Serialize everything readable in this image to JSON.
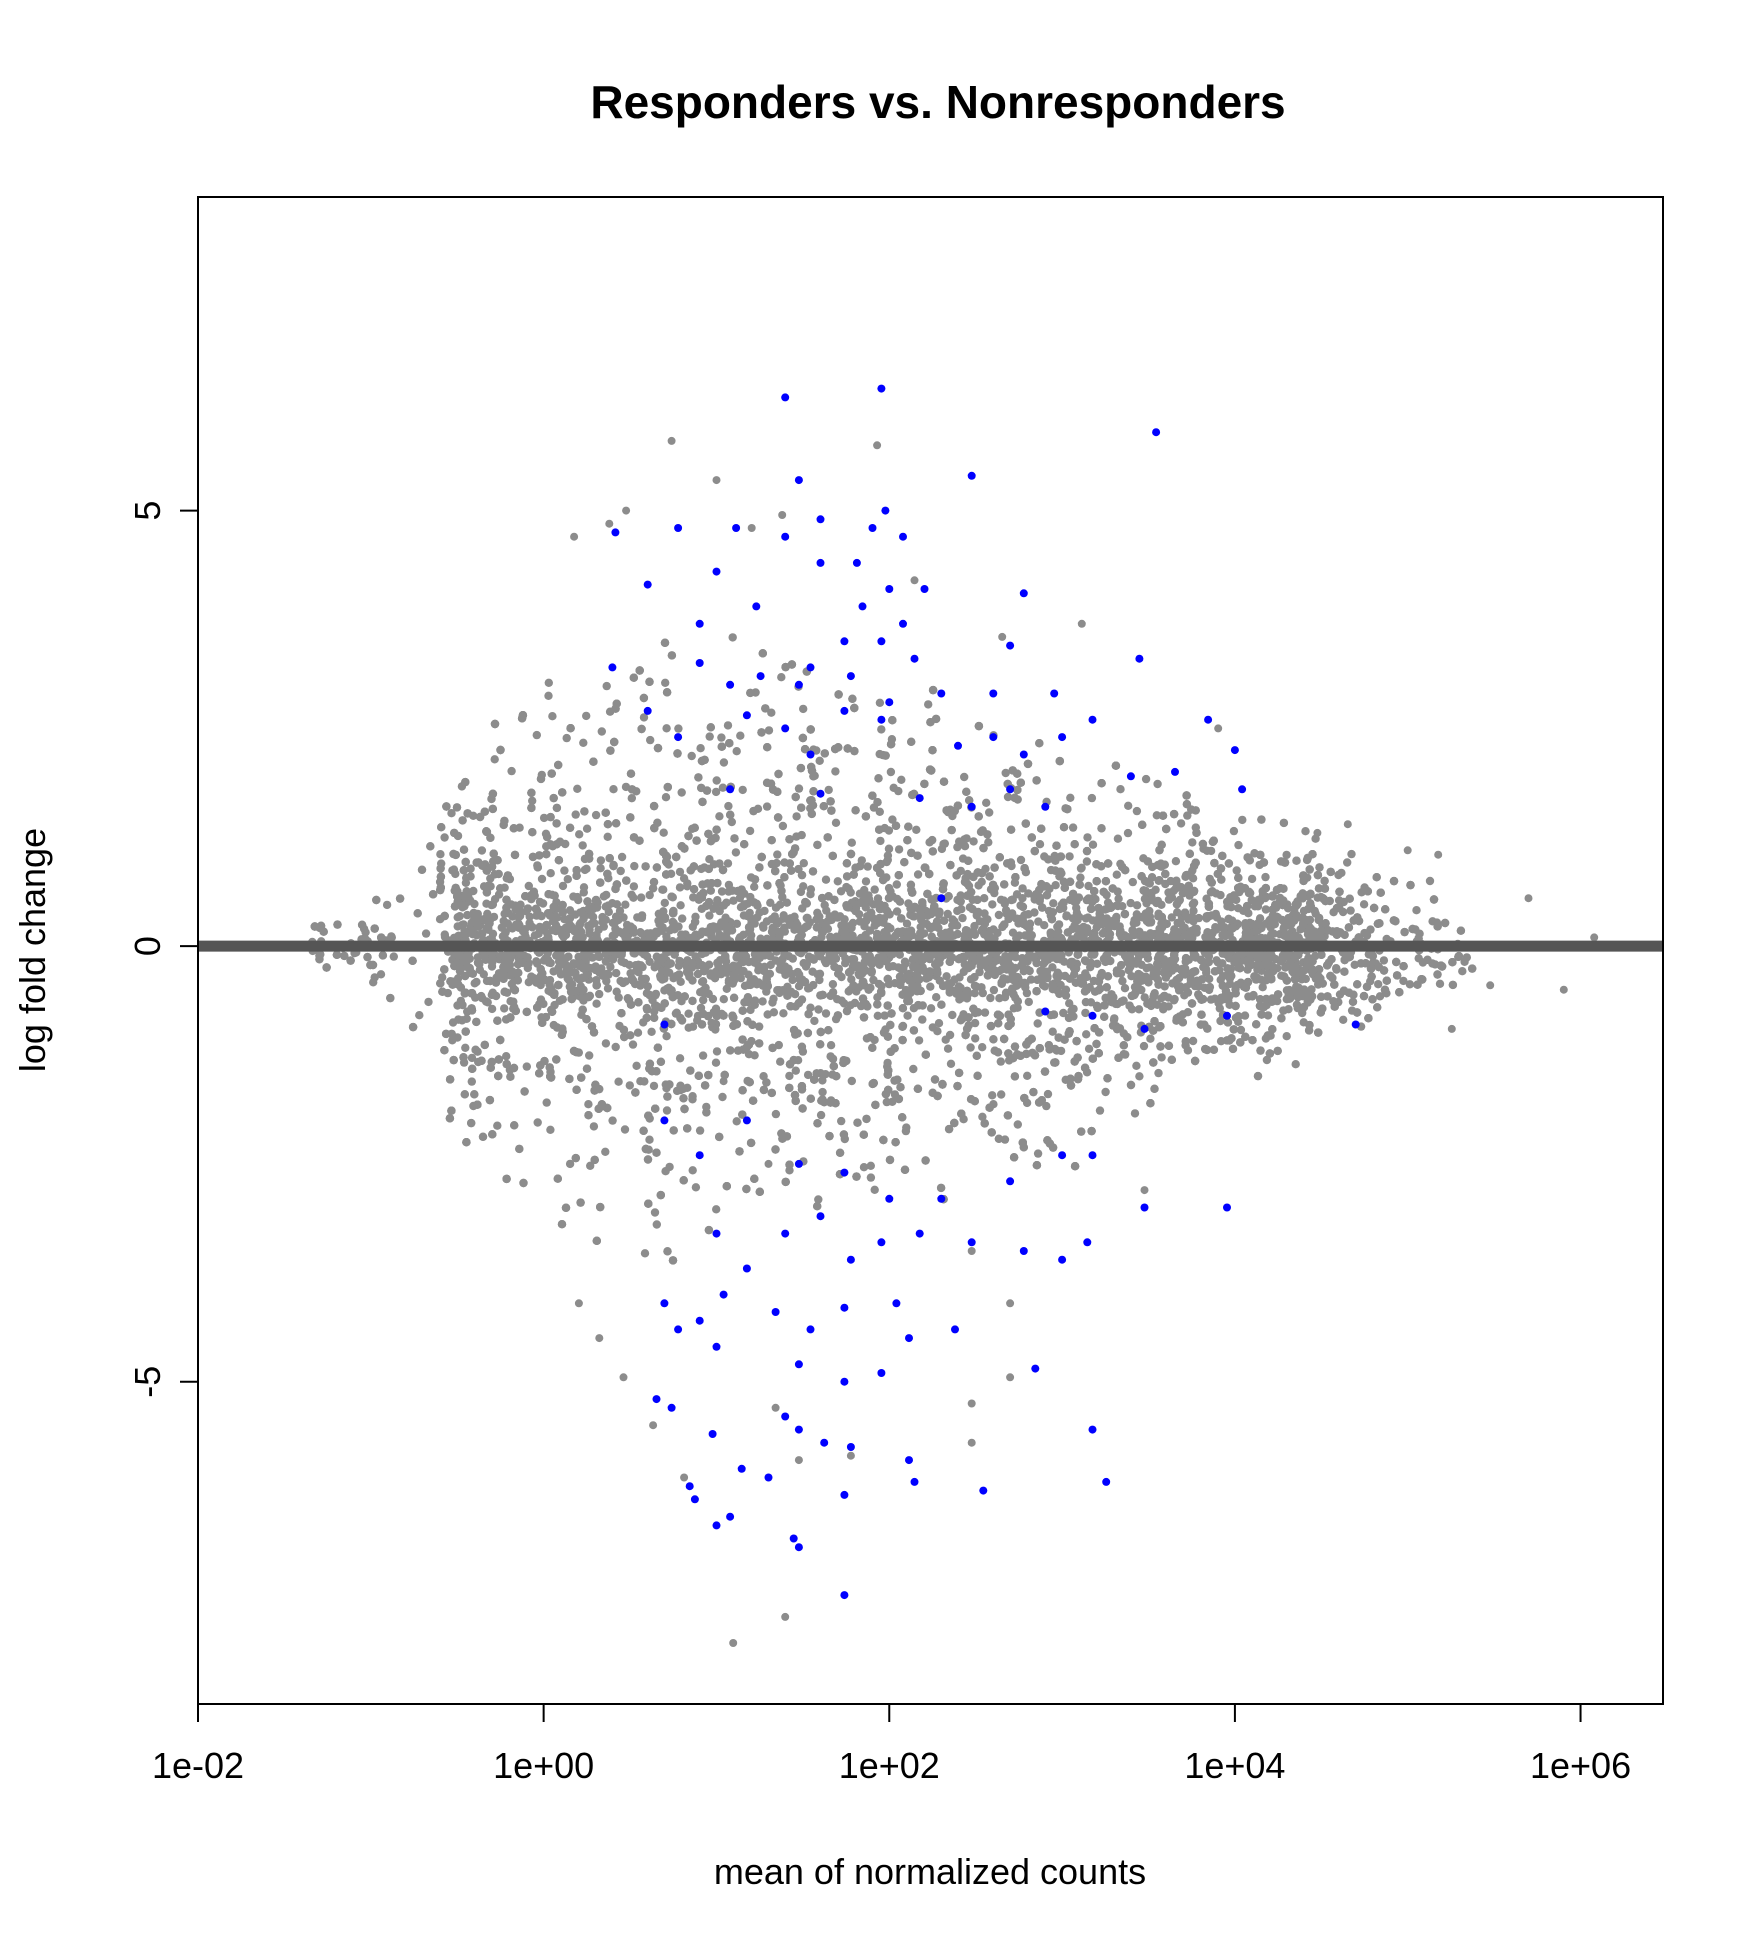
{
  "chart_data": {
    "type": "scatter",
    "title": "Responders vs. Nonresponders",
    "xlabel": "mean of normalized counts",
    "ylabel": "log fold change",
    "x_scale": "log10",
    "xlim": [
      0.01,
      3000000
    ],
    "ylim": [
      -8.7,
      8.6
    ],
    "x_ticks": [
      {
        "value": 0.01,
        "label": "1e-02"
      },
      {
        "value": 1,
        "label": "1e+00"
      },
      {
        "value": 100,
        "label": "1e+02"
      },
      {
        "value": 10000,
        "label": "1e+04"
      },
      {
        "value": 1000000,
        "label": "1e+06"
      }
    ],
    "y_ticks": [
      {
        "value": -5,
        "label": "-5"
      },
      {
        "value": 0,
        "label": "0"
      },
      {
        "value": 5,
        "label": "5"
      }
    ],
    "reference_line": {
      "y": 0,
      "color": "#555555"
    },
    "colors": {
      "not_significant": "#8c8c8c",
      "significant": "#0000ff"
    },
    "grid": false,
    "legend": "none",
    "series": [
      {
        "values": [
          [
            1.5,
            4.7
          ],
          [
            2.4,
            4.85
          ],
          [
            3.0,
            5.0
          ],
          [
            5.5,
            5.8
          ],
          [
            10,
            5.35
          ],
          [
            16,
            4.8
          ],
          [
            24,
            4.95
          ],
          [
            85,
            5.75
          ],
          [
            140,
            4.2
          ],
          [
            450,
            3.55
          ],
          [
            1300,
            3.7
          ],
          [
            8000,
            2.5
          ],
          [
            30000,
            1.3
          ],
          [
            45000,
            1.4
          ],
          [
            100000,
            1.1
          ],
          [
            150000,
            1.05
          ],
          [
            500000,
            0.55
          ],
          [
            1200000,
            0.1
          ],
          [
            180000,
            -0.95
          ],
          [
            800000,
            -0.5
          ],
          [
            300000,
            -0.45
          ],
          [
            11,
            -1.55
          ],
          [
            20,
            -2.5
          ],
          [
            1.6,
            -4.1
          ],
          [
            2.1,
            -4.5
          ],
          [
            2.9,
            -4.95
          ],
          [
            4.3,
            -5.5
          ],
          [
            6.5,
            -6.1
          ],
          [
            12.5,
            -8.0
          ],
          [
            25,
            -7.7
          ],
          [
            22,
            -5.3
          ],
          [
            60,
            -5.85
          ],
          [
            300,
            -5.25
          ],
          [
            300,
            -5.7
          ],
          [
            500,
            -4.1
          ],
          [
            500,
            -4.95
          ],
          [
            3000,
            -2.8
          ],
          [
            300,
            -3.5
          ],
          [
            30,
            -5.9
          ]
        ]
      },
      {
        "values": [
          [
            25,
            6.3
          ],
          [
            90,
            6.4
          ],
          [
            3500,
            5.9
          ],
          [
            30,
            5.35
          ],
          [
            300,
            5.4
          ],
          [
            6,
            4.8
          ],
          [
            13,
            4.8
          ],
          [
            25,
            4.7
          ],
          [
            40,
            4.9
          ],
          [
            80,
            4.8
          ],
          [
            95,
            5.0
          ],
          [
            120,
            4.7
          ],
          [
            2.6,
            4.75
          ],
          [
            4,
            4.15
          ],
          [
            8,
            3.7
          ],
          [
            17,
            3.9
          ],
          [
            10,
            4.3
          ],
          [
            40,
            4.4
          ],
          [
            65,
            4.4
          ],
          [
            100,
            4.1
          ],
          [
            160,
            4.1
          ],
          [
            70,
            3.9
          ],
          [
            120,
            3.7
          ],
          [
            90,
            3.5
          ],
          [
            35,
            3.2
          ],
          [
            55,
            3.5
          ],
          [
            140,
            3.3
          ],
          [
            500,
            3.45
          ],
          [
            600,
            4.05
          ],
          [
            2800,
            3.3
          ],
          [
            2.5,
            3.2
          ],
          [
            8,
            3.25
          ],
          [
            12,
            3.0
          ],
          [
            18,
            3.1
          ],
          [
            30,
            3.0
          ],
          [
            60,
            3.1
          ],
          [
            100,
            2.8
          ],
          [
            200,
            2.9
          ],
          [
            400,
            2.9
          ],
          [
            900,
            2.9
          ],
          [
            4,
            2.7
          ],
          [
            6,
            2.4
          ],
          [
            15,
            2.65
          ],
          [
            25,
            2.5
          ],
          [
            35,
            2.2
          ],
          [
            55,
            2.7
          ],
          [
            90,
            2.6
          ],
          [
            250,
            2.3
          ],
          [
            400,
            2.4
          ],
          [
            600,
            2.2
          ],
          [
            1000,
            2.4
          ],
          [
            1500,
            2.6
          ],
          [
            2500,
            1.95
          ],
          [
            4500,
            2.0
          ],
          [
            7000,
            2.6
          ],
          [
            10000,
            2.25
          ],
          [
            11000,
            1.8
          ],
          [
            12,
            1.8
          ],
          [
            40,
            1.75
          ],
          [
            150,
            1.7
          ],
          [
            300,
            1.6
          ],
          [
            500,
            1.8
          ],
          [
            800,
            1.6
          ],
          [
            200,
            0.55
          ],
          [
            5,
            -0.9
          ],
          [
            800,
            -0.75
          ],
          [
            1500,
            -0.8
          ],
          [
            3000,
            -0.95
          ],
          [
            9000,
            -0.8
          ],
          [
            50000,
            -0.9
          ],
          [
            5,
            -2.0
          ],
          [
            8,
            -2.4
          ],
          [
            15,
            -2.0
          ],
          [
            30,
            -2.5
          ],
          [
            55,
            -2.6
          ],
          [
            100,
            -2.9
          ],
          [
            200,
            -2.9
          ],
          [
            500,
            -2.7
          ],
          [
            1000,
            -2.4
          ],
          [
            1500,
            -2.4
          ],
          [
            3000,
            -3.0
          ],
          [
            9000,
            -3.0
          ],
          [
            10,
            -3.3
          ],
          [
            15,
            -3.7
          ],
          [
            25,
            -3.3
          ],
          [
            40,
            -3.1
          ],
          [
            60,
            -3.6
          ],
          [
            90,
            -3.4
          ],
          [
            150,
            -3.3
          ],
          [
            300,
            -3.4
          ],
          [
            600,
            -3.5
          ],
          [
            1000,
            -3.6
          ],
          [
            1400,
            -3.4
          ],
          [
            5,
            -4.1
          ],
          [
            8,
            -4.3
          ],
          [
            11,
            -4.0
          ],
          [
            22,
            -4.2
          ],
          [
            35,
            -4.4
          ],
          [
            55,
            -4.15
          ],
          [
            110,
            -4.1
          ],
          [
            240,
            -4.4
          ],
          [
            6,
            -4.4
          ],
          [
            10,
            -4.6
          ],
          [
            30,
            -4.8
          ],
          [
            55,
            -5.0
          ],
          [
            90,
            -4.9
          ],
          [
            130,
            -4.5
          ],
          [
            700,
            -4.85
          ],
          [
            4.5,
            -5.2
          ],
          [
            5.5,
            -5.3
          ],
          [
            9.5,
            -5.6
          ],
          [
            25,
            -5.4
          ],
          [
            30,
            -5.55
          ],
          [
            42,
            -5.7
          ],
          [
            60,
            -5.75
          ],
          [
            130,
            -5.9
          ],
          [
            1500,
            -5.55
          ],
          [
            7,
            -6.2
          ],
          [
            14,
            -6.0
          ],
          [
            20,
            -6.1
          ],
          [
            55,
            -6.3
          ],
          [
            140,
            -6.15
          ],
          [
            350,
            -6.25
          ],
          [
            1800,
            -6.15
          ],
          [
            7.5,
            -6.35
          ],
          [
            10,
            -6.65
          ],
          [
            12,
            -6.55
          ],
          [
            28,
            -6.8
          ],
          [
            30,
            -6.9
          ],
          [
            55,
            -7.45
          ]
        ]
      }
    ]
  }
}
